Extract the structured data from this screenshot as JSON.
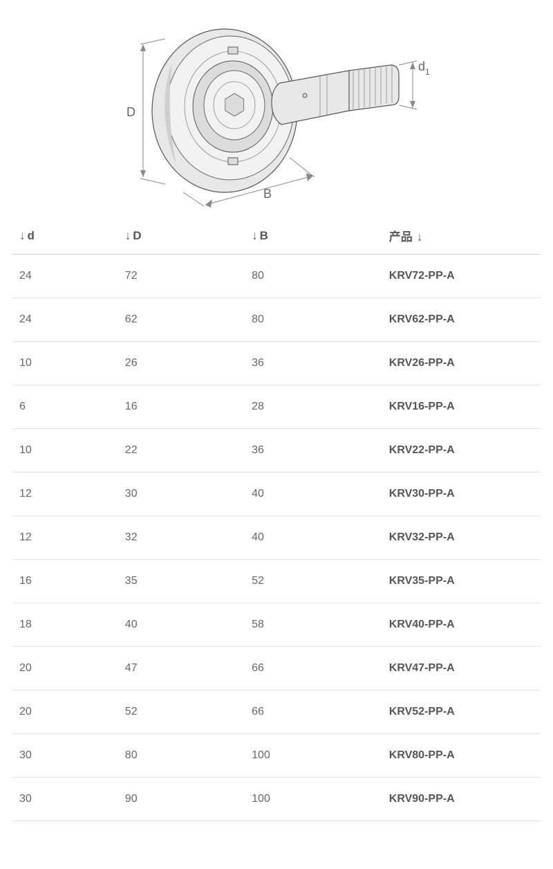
{
  "diagram": {
    "labels": {
      "D": "D",
      "B": "B",
      "d1": "d",
      "d1_sub": "1"
    },
    "colors": {
      "outline": "#555555",
      "fill_light": "#f2f2f2",
      "fill_med": "#e8e8e8",
      "fill_dark": "#dcdcdc",
      "shade": "#cfcfcf",
      "dim_line": "#888888",
      "label": "#666666"
    }
  },
  "table": {
    "sort_glyph": "↓",
    "columns": [
      {
        "key": "d",
        "label": "d",
        "class": "col-d",
        "arrow_pos": "before"
      },
      {
        "key": "D",
        "label": "D",
        "class": "col-D",
        "arrow_pos": "before"
      },
      {
        "key": "B",
        "label": "B",
        "class": "col-B",
        "arrow_pos": "before"
      },
      {
        "key": "product",
        "label": "产品",
        "class": "col-product",
        "arrow_pos": "after"
      }
    ],
    "rows": [
      {
        "d": "24",
        "D": "72",
        "B": "80",
        "product": "KRV72-PP-A"
      },
      {
        "d": "24",
        "D": "62",
        "B": "80",
        "product": "KRV62-PP-A"
      },
      {
        "d": "10",
        "D": "26",
        "B": "36",
        "product": "KRV26-PP-A"
      },
      {
        "d": "6",
        "D": "16",
        "B": "28",
        "product": "KRV16-PP-A"
      },
      {
        "d": "10",
        "D": "22",
        "B": "36",
        "product": "KRV22-PP-A"
      },
      {
        "d": "12",
        "D": "30",
        "B": "40",
        "product": "KRV30-PP-A"
      },
      {
        "d": "12",
        "D": "32",
        "B": "40",
        "product": "KRV32-PP-A"
      },
      {
        "d": "16",
        "D": "35",
        "B": "52",
        "product": "KRV35-PP-A"
      },
      {
        "d": "18",
        "D": "40",
        "B": "58",
        "product": "KRV40-PP-A"
      },
      {
        "d": "20",
        "D": "47",
        "B": "66",
        "product": "KRV47-PP-A"
      },
      {
        "d": "20",
        "D": "52",
        "B": "66",
        "product": "KRV52-PP-A"
      },
      {
        "d": "30",
        "D": "80",
        "B": "100",
        "product": "KRV80-PP-A"
      },
      {
        "d": "30",
        "D": "90",
        "B": "100",
        "product": "KRV90-PP-A"
      }
    ]
  },
  "style": {
    "header_fontsize": 17,
    "cell_fontsize": 16,
    "header_color": "#555555",
    "cell_color": "#666666",
    "row_border": "#e3e3e3",
    "header_border": "#d0d0d0",
    "background": "#ffffff",
    "product_weight": "700"
  }
}
